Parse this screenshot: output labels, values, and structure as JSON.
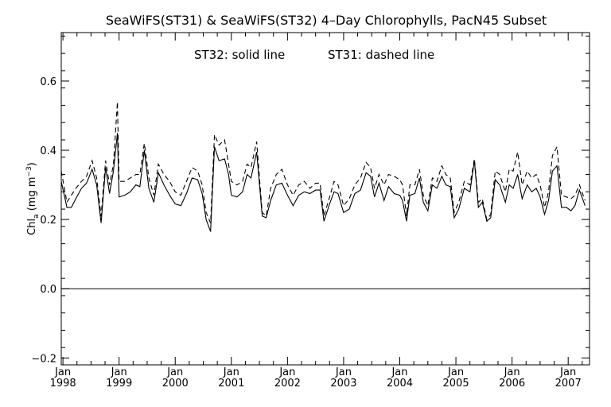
{
  "chart_data": {
    "type": "line",
    "title": "SeaWiFS(ST31) & SeaWiFS(ST32) 4–Day Chlorophylls, PacN45 Subset",
    "annotation_left": "ST32: solid line",
    "annotation_right": "ST31: dashed line",
    "ylabel": {
      "main": "Chl",
      "sub": "a",
      "unit_open": " (mg m",
      "unit_sup": "−3",
      "unit_close": ")"
    },
    "ylim": [
      -0.22,
      0.74
    ],
    "xlim": [
      1997.97,
      2007.38
    ],
    "yticks": [
      {
        "value": -0.2,
        "label": "−0.2"
      },
      {
        "value": 0.0,
        "label": "0.0"
      },
      {
        "value": 0.2,
        "label": "0.2"
      },
      {
        "value": 0.4,
        "label": "0.4"
      },
      {
        "value": 0.6,
        "label": "0.6"
      }
    ],
    "xticks": [
      {
        "value": 1998,
        "month": "Jan",
        "year": "1998"
      },
      {
        "value": 1999,
        "month": "Jan",
        "year": "1999"
      },
      {
        "value": 2000,
        "month": "Jan",
        "year": "2000"
      },
      {
        "value": 2001,
        "month": "Jan",
        "year": "2001"
      },
      {
        "value": 2002,
        "month": "Jan",
        "year": "2002"
      },
      {
        "value": 2003,
        "month": "Jan",
        "year": "2003"
      },
      {
        "value": 2004,
        "month": "Jan",
        "year": "2004"
      },
      {
        "value": 2005,
        "month": "Jan",
        "year": "2005"
      },
      {
        "value": 2006,
        "month": "Jan",
        "year": "2006"
      },
      {
        "value": 2007,
        "month": "Jan",
        "year": "2007"
      }
    ],
    "zero_line": 0.0,
    "series": [
      {
        "name": "ST32",
        "style": "solid",
        "color": "#000000",
        "points": [
          [
            1997.97,
            0.31
          ],
          [
            1998.07,
            0.235
          ],
          [
            1998.15,
            0.235
          ],
          [
            1998.23,
            0.26
          ],
          [
            1998.33,
            0.29
          ],
          [
            1998.42,
            0.305
          ],
          [
            1998.52,
            0.345
          ],
          [
            1998.6,
            0.3
          ],
          [
            1998.68,
            0.19
          ],
          [
            1998.76,
            0.35
          ],
          [
            1998.83,
            0.275
          ],
          [
            1998.9,
            0.34
          ],
          [
            1998.97,
            0.45
          ],
          [
            1999.0,
            0.265
          ],
          [
            1999.1,
            0.27
          ],
          [
            1999.2,
            0.28
          ],
          [
            1999.3,
            0.3
          ],
          [
            1999.37,
            0.295
          ],
          [
            1999.45,
            0.4
          ],
          [
            1999.53,
            0.29
          ],
          [
            1999.62,
            0.25
          ],
          [
            1999.7,
            0.335
          ],
          [
            1999.8,
            0.3
          ],
          [
            1999.9,
            0.27
          ],
          [
            2000.0,
            0.245
          ],
          [
            2000.1,
            0.24
          ],
          [
            2000.2,
            0.275
          ],
          [
            2000.3,
            0.32
          ],
          [
            2000.4,
            0.315
          ],
          [
            2000.48,
            0.275
          ],
          [
            2000.55,
            0.2
          ],
          [
            2000.63,
            0.165
          ],
          [
            2000.7,
            0.41
          ],
          [
            2000.78,
            0.37
          ],
          [
            2000.88,
            0.375
          ],
          [
            2000.95,
            0.33
          ],
          [
            2001.0,
            0.27
          ],
          [
            2001.1,
            0.265
          ],
          [
            2001.2,
            0.28
          ],
          [
            2001.28,
            0.33
          ],
          [
            2001.35,
            0.32
          ],
          [
            2001.45,
            0.395
          ],
          [
            2001.55,
            0.21
          ],
          [
            2001.62,
            0.205
          ],
          [
            2001.7,
            0.255
          ],
          [
            2001.8,
            0.3
          ],
          [
            2001.9,
            0.305
          ],
          [
            2002.0,
            0.27
          ],
          [
            2002.1,
            0.24
          ],
          [
            2002.2,
            0.27
          ],
          [
            2002.3,
            0.28
          ],
          [
            2002.4,
            0.275
          ],
          [
            2002.5,
            0.285
          ],
          [
            2002.58,
            0.285
          ],
          [
            2002.65,
            0.195
          ],
          [
            2002.75,
            0.245
          ],
          [
            2002.83,
            0.28
          ],
          [
            2002.9,
            0.275
          ],
          [
            2003.0,
            0.22
          ],
          [
            2003.1,
            0.23
          ],
          [
            2003.2,
            0.275
          ],
          [
            2003.3,
            0.285
          ],
          [
            2003.4,
            0.335
          ],
          [
            2003.48,
            0.325
          ],
          [
            2003.55,
            0.265
          ],
          [
            2003.63,
            0.305
          ],
          [
            2003.72,
            0.255
          ],
          [
            2003.8,
            0.295
          ],
          [
            2003.9,
            0.275
          ],
          [
            2004.0,
            0.27
          ],
          [
            2004.05,
            0.255
          ],
          [
            2004.12,
            0.195
          ],
          [
            2004.18,
            0.27
          ],
          [
            2004.27,
            0.275
          ],
          [
            2004.35,
            0.32
          ],
          [
            2004.42,
            0.25
          ],
          [
            2004.5,
            0.225
          ],
          [
            2004.58,
            0.3
          ],
          [
            2004.66,
            0.29
          ],
          [
            2004.75,
            0.325
          ],
          [
            2004.82,
            0.3
          ],
          [
            2004.9,
            0.295
          ],
          [
            2004.97,
            0.205
          ],
          [
            2005.05,
            0.23
          ],
          [
            2005.15,
            0.29
          ],
          [
            2005.25,
            0.28
          ],
          [
            2005.33,
            0.37
          ],
          [
            2005.4,
            0.235
          ],
          [
            2005.47,
            0.25
          ],
          [
            2005.55,
            0.195
          ],
          [
            2005.62,
            0.205
          ],
          [
            2005.7,
            0.315
          ],
          [
            2005.78,
            0.3
          ],
          [
            2005.88,
            0.25
          ],
          [
            2005.95,
            0.3
          ],
          [
            2006.02,
            0.29
          ],
          [
            2006.1,
            0.33
          ],
          [
            2006.18,
            0.26
          ],
          [
            2006.27,
            0.3
          ],
          [
            2006.35,
            0.28
          ],
          [
            2006.43,
            0.29
          ],
          [
            2006.5,
            0.265
          ],
          [
            2006.58,
            0.215
          ],
          [
            2006.65,
            0.255
          ],
          [
            2006.72,
            0.34
          ],
          [
            2006.8,
            0.355
          ],
          [
            2006.88,
            0.235
          ],
          [
            2006.97,
            0.235
          ],
          [
            2007.05,
            0.225
          ],
          [
            2007.12,
            0.24
          ],
          [
            2007.2,
            0.285
          ],
          [
            2007.3,
            0.24
          ]
        ]
      },
      {
        "name": "ST31",
        "style": "dashed",
        "color": "#000000",
        "points": [
          [
            1997.97,
            0.34
          ],
          [
            1998.07,
            0.25
          ],
          [
            1998.15,
            0.27
          ],
          [
            1998.23,
            0.29
          ],
          [
            1998.33,
            0.31
          ],
          [
            1998.42,
            0.325
          ],
          [
            1998.52,
            0.37
          ],
          [
            1998.6,
            0.32
          ],
          [
            1998.68,
            0.21
          ],
          [
            1998.76,
            0.37
          ],
          [
            1998.83,
            0.3
          ],
          [
            1998.9,
            0.36
          ],
          [
            1998.97,
            0.54
          ],
          [
            1999.0,
            0.31
          ],
          [
            1999.1,
            0.31
          ],
          [
            1999.2,
            0.32
          ],
          [
            1999.3,
            0.33
          ],
          [
            1999.37,
            0.33
          ],
          [
            1999.45,
            0.42
          ],
          [
            1999.53,
            0.32
          ],
          [
            1999.62,
            0.27
          ],
          [
            1999.7,
            0.36
          ],
          [
            1999.8,
            0.33
          ],
          [
            1999.9,
            0.31
          ],
          [
            2000.0,
            0.28
          ],
          [
            2000.1,
            0.27
          ],
          [
            2000.2,
            0.31
          ],
          [
            2000.3,
            0.35
          ],
          [
            2000.4,
            0.34
          ],
          [
            2000.48,
            0.3
          ],
          [
            2000.55,
            0.22
          ],
          [
            2000.63,
            0.19
          ],
          [
            2000.7,
            0.445
          ],
          [
            2000.78,
            0.415
          ],
          [
            2000.88,
            0.43
          ],
          [
            2000.95,
            0.36
          ],
          [
            2001.0,
            0.31
          ],
          [
            2001.1,
            0.3
          ],
          [
            2001.2,
            0.31
          ],
          [
            2001.28,
            0.36
          ],
          [
            2001.35,
            0.35
          ],
          [
            2001.45,
            0.425
          ],
          [
            2001.55,
            0.22
          ],
          [
            2001.62,
            0.21
          ],
          [
            2001.7,
            0.29
          ],
          [
            2001.8,
            0.33
          ],
          [
            2001.9,
            0.345
          ],
          [
            2002.0,
            0.3
          ],
          [
            2002.1,
            0.27
          ],
          [
            2002.2,
            0.3
          ],
          [
            2002.3,
            0.31
          ],
          [
            2002.4,
            0.29
          ],
          [
            2002.5,
            0.305
          ],
          [
            2002.58,
            0.305
          ],
          [
            2002.65,
            0.21
          ],
          [
            2002.75,
            0.265
          ],
          [
            2002.83,
            0.31
          ],
          [
            2002.9,
            0.3
          ],
          [
            2003.0,
            0.24
          ],
          [
            2003.1,
            0.26
          ],
          [
            2003.2,
            0.3
          ],
          [
            2003.3,
            0.32
          ],
          [
            2003.4,
            0.365
          ],
          [
            2003.48,
            0.35
          ],
          [
            2003.55,
            0.29
          ],
          [
            2003.63,
            0.33
          ],
          [
            2003.72,
            0.3
          ],
          [
            2003.8,
            0.33
          ],
          [
            2003.9,
            0.325
          ],
          [
            2004.0,
            0.315
          ],
          [
            2004.05,
            0.3
          ],
          [
            2004.12,
            0.21
          ],
          [
            2004.18,
            0.3
          ],
          [
            2004.27,
            0.3
          ],
          [
            2004.35,
            0.345
          ],
          [
            2004.42,
            0.27
          ],
          [
            2004.5,
            0.24
          ],
          [
            2004.58,
            0.32
          ],
          [
            2004.66,
            0.31
          ],
          [
            2004.75,
            0.355
          ],
          [
            2004.82,
            0.33
          ],
          [
            2004.9,
            0.32
          ],
          [
            2004.97,
            0.22
          ],
          [
            2005.05,
            0.25
          ],
          [
            2005.15,
            0.31
          ],
          [
            2005.25,
            0.3
          ],
          [
            2005.33,
            0.375
          ],
          [
            2005.4,
            0.25
          ],
          [
            2005.47,
            0.26
          ],
          [
            2005.55,
            0.2
          ],
          [
            2005.62,
            0.215
          ],
          [
            2005.7,
            0.34
          ],
          [
            2005.78,
            0.33
          ],
          [
            2005.88,
            0.28
          ],
          [
            2005.95,
            0.345
          ],
          [
            2006.02,
            0.34
          ],
          [
            2006.1,
            0.395
          ],
          [
            2006.18,
            0.3
          ],
          [
            2006.27,
            0.34
          ],
          [
            2006.35,
            0.32
          ],
          [
            2006.43,
            0.33
          ],
          [
            2006.5,
            0.3
          ],
          [
            2006.58,
            0.235
          ],
          [
            2006.65,
            0.28
          ],
          [
            2006.72,
            0.385
          ],
          [
            2006.8,
            0.41
          ],
          [
            2006.88,
            0.27
          ],
          [
            2006.97,
            0.265
          ],
          [
            2007.05,
            0.26
          ],
          [
            2007.12,
            0.27
          ],
          [
            2007.2,
            0.3
          ],
          [
            2007.3,
            0.255
          ]
        ]
      }
    ]
  }
}
